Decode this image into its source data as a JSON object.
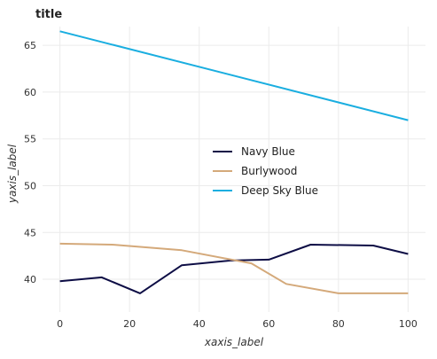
{
  "chart_data": {
    "type": "line",
    "title": "title",
    "xlabel": "xaxis_label",
    "ylabel": "yaxis_label",
    "xlim": [
      -5,
      105
    ],
    "ylim": [
      36.5,
      67
    ],
    "x_ticks": [
      0,
      20,
      40,
      60,
      80,
      100
    ],
    "y_ticks": [
      40,
      45,
      50,
      55,
      60,
      65
    ],
    "grid": true,
    "legend_position": "center-right",
    "series": [
      {
        "name": "Navy Blue",
        "color": "#0d0d45",
        "x": [
          0,
          12,
          23,
          35,
          49,
          60,
          72,
          90,
          100
        ],
        "y": [
          39.8,
          40.2,
          38.5,
          41.5,
          42.0,
          42.1,
          43.7,
          43.6,
          42.7
        ]
      },
      {
        "name": "Burlywood",
        "color": "#d4a97a",
        "x": [
          0,
          15,
          35,
          55,
          65,
          80,
          100
        ],
        "y": [
          43.8,
          43.7,
          43.1,
          41.7,
          39.5,
          38.5,
          38.5
        ]
      },
      {
        "name": "Deep Sky Blue",
        "color": "#1aaee0",
        "x": [
          0,
          100
        ],
        "y": [
          66.5,
          57.0
        ]
      }
    ]
  }
}
